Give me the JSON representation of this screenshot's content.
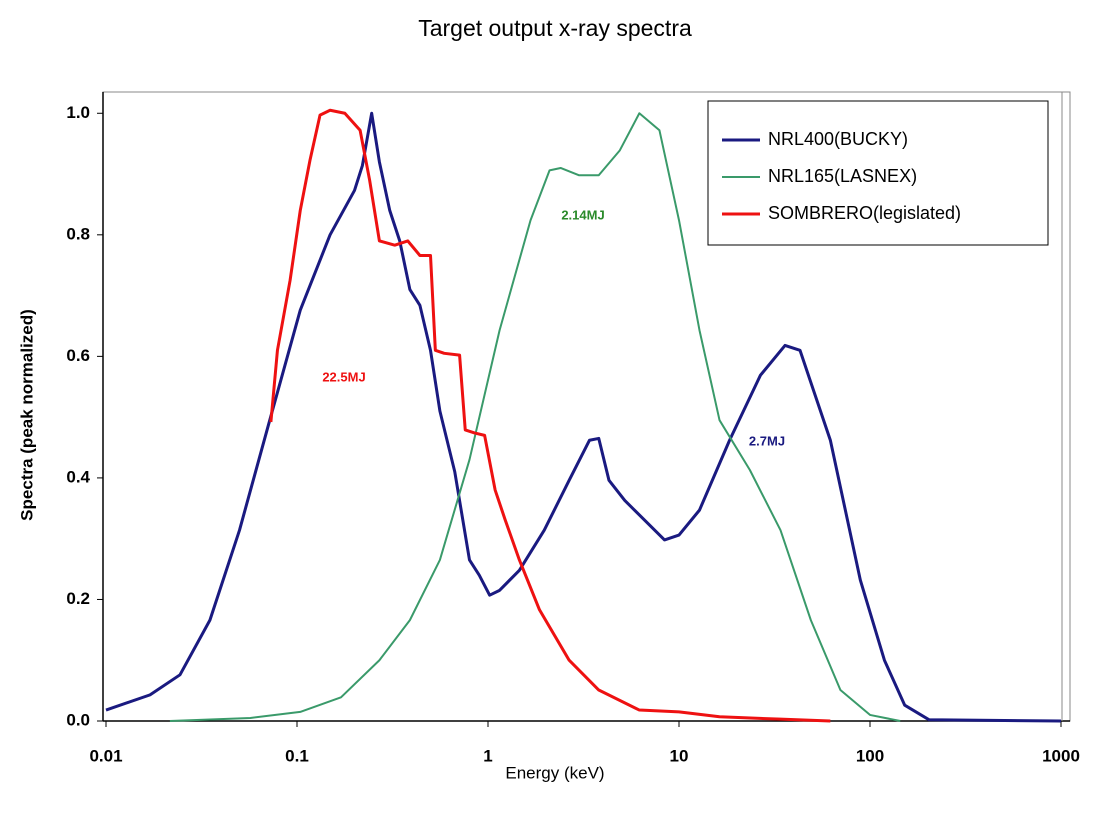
{
  "chart_data": {
    "type": "line",
    "title": "Target output x-ray spectra",
    "xlabel": "Energy (keV)",
    "ylabel": "Spectra (peak normalized)",
    "xscale": "log",
    "xlim": [
      0.01,
      1000
    ],
    "xticks": [
      0.01,
      0.1,
      1,
      10,
      100,
      1000
    ],
    "ylim": [
      0,
      1.035
    ],
    "yticks": [
      {
        "value": 0,
        "label": "0.0"
      },
      0.2,
      0.4,
      0.6,
      0.8,
      {
        "value": 1,
        "label": "1.0"
      }
    ],
    "grid": false,
    "legend": "upper right",
    "annotations": [
      "2.14MJ",
      "22.5MJ",
      "2.7MJ"
    ],
    "series": [
      {
        "name": "NRL400(BUCKY)",
        "color": "#1a1a80",
        "x": [
          0.01,
          0.017,
          0.0244,
          0.035,
          0.05,
          0.072,
          0.104,
          0.149,
          0.2,
          0.22,
          0.246,
          0.27,
          0.306,
          0.345,
          0.39,
          0.44,
          0.5,
          0.56,
          0.67,
          0.8,
          0.9,
          1.02,
          1.15,
          1.46,
          1.97,
          2.66,
          3.4,
          3.8,
          4.3,
          5.2,
          6.2,
          8.4,
          10,
          12.8,
          18.4,
          26.7,
          35.9,
          43,
          62,
          89,
          119,
          152,
          204,
          1000
        ],
        "values": [
          0.018,
          0.043,
          0.076,
          0.166,
          0.314,
          0.495,
          0.676,
          0.8,
          0.873,
          0.914,
          1.0,
          0.92,
          0.84,
          0.79,
          0.71,
          0.684,
          0.61,
          0.51,
          0.41,
          0.265,
          0.24,
          0.207,
          0.215,
          0.248,
          0.314,
          0.396,
          0.462,
          0.465,
          0.396,
          0.363,
          0.339,
          0.298,
          0.306,
          0.347,
          0.462,
          0.569,
          0.618,
          0.61,
          0.462,
          0.232,
          0.1,
          0.026,
          0.002,
          0.0
        ]
      },
      {
        "name": "NRL165(LASNEX)",
        "color": "#3a9a6a",
        "x": [
          0.0216,
          0.057,
          0.104,
          0.17,
          0.27,
          0.39,
          0.56,
          0.8,
          1.15,
          1.67,
          2.1,
          2.4,
          3.0,
          3.8,
          4.9,
          6.2,
          7.9,
          10,
          12.8,
          16.3,
          23.5,
          34,
          49,
          70,
          100,
          144
        ],
        "values": [
          0.0,
          0.005,
          0.015,
          0.039,
          0.1,
          0.166,
          0.265,
          0.43,
          0.643,
          0.824,
          0.906,
          0.91,
          0.898,
          0.898,
          0.939,
          1.0,
          0.972,
          0.824,
          0.643,
          0.495,
          0.413,
          0.314,
          0.166,
          0.051,
          0.01,
          0.0
        ]
      },
      {
        "name": "SOMBRERO(legislated)",
        "color": "#ee1111",
        "x": [
          0.073,
          0.079,
          0.092,
          0.104,
          0.117,
          0.132,
          0.149,
          0.178,
          0.214,
          0.24,
          0.27,
          0.325,
          0.38,
          0.44,
          0.5,
          0.53,
          0.59,
          0.71,
          0.76,
          0.85,
          0.96,
          1.09,
          1.23,
          1.46,
          1.86,
          2.66,
          3.8,
          6.2,
          10,
          16.3,
          34,
          62
        ],
        "values": [
          0.492,
          0.61,
          0.725,
          0.84,
          0.923,
          0.997,
          1.005,
          1.0,
          0.972,
          0.89,
          0.79,
          0.783,
          0.79,
          0.766,
          0.766,
          0.61,
          0.605,
          0.602,
          0.479,
          0.474,
          0.47,
          0.38,
          0.331,
          0.265,
          0.183,
          0.1,
          0.051,
          0.018,
          0.015,
          0.007,
          0.003,
          0.0
        ]
      }
    ]
  }
}
